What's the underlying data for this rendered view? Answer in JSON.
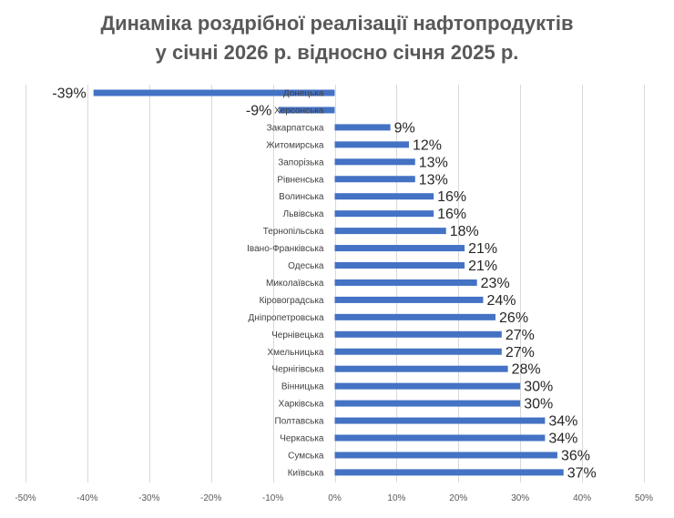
{
  "chart_data": {
    "type": "bar",
    "orientation": "horizontal",
    "title_lines": [
      "Динаміка роздрібної реалізації нафтопродуктів",
      "у січні 2026 р. відносно січня 2025 р."
    ],
    "categories": [
      "Донецька",
      "Херсонська",
      "Закарпатська",
      "Житомирська",
      "Запорізька",
      "Рівненська",
      "Волинська",
      "Львівська",
      "Тернопільська",
      "Івано-Франківська",
      "Одеська",
      "Миколаївська",
      "Кіровоградська",
      "Дніпропетровська",
      "Чернівецька",
      "Хмельницька",
      "Чернігівська",
      "Вінницька",
      "Харківська",
      "Полтавська",
      "Черкаська",
      "Сумська",
      "Київська"
    ],
    "values": [
      -39,
      -9,
      9,
      12,
      13,
      13,
      16,
      16,
      18,
      21,
      21,
      23,
      24,
      26,
      27,
      27,
      28,
      30,
      30,
      34,
      34,
      36,
      37
    ],
    "data_labels": [
      "-39%",
      "-9%",
      "9%",
      "12%",
      "13%",
      "13%",
      "16%",
      "16%",
      "18%",
      "21%",
      "21%",
      "23%",
      "24%",
      "26%",
      "27%",
      "27%",
      "28%",
      "30%",
      "30%",
      "34%",
      "34%",
      "36%",
      "37%"
    ],
    "x_ticks": [
      -50,
      -40,
      -30,
      -20,
      -10,
      0,
      10,
      20,
      30,
      40,
      50
    ],
    "x_tick_labels": [
      "-50%",
      "-40%",
      "-30%",
      "-20%",
      "-10%",
      "0%",
      "10%",
      "20%",
      "30%",
      "40%",
      "50%"
    ],
    "xlim": [
      -50,
      50
    ],
    "grid": true,
    "legend": "none",
    "bar_color": "#4472c4"
  }
}
